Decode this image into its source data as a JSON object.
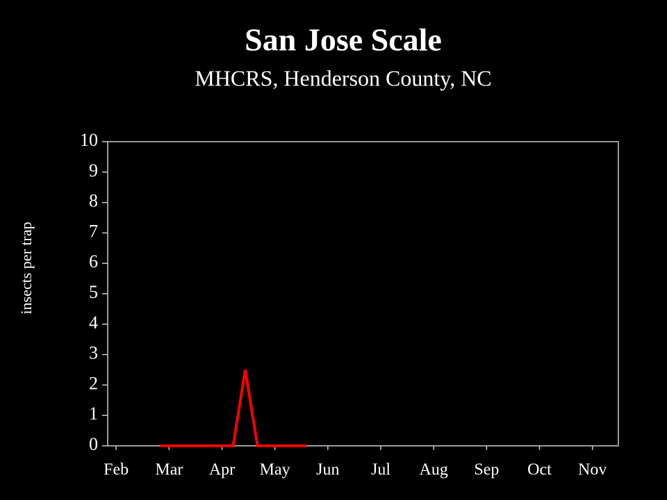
{
  "chart_data": {
    "type": "line",
    "title": "San Jose Scale",
    "subtitle": "MHCRS, Henderson County, NC",
    "y_label": "insects per trap",
    "x": [
      2.83,
      3.06,
      3.29,
      3.52,
      3.75,
      3.98,
      4.21,
      4.44,
      4.67,
      4.9,
      5.13,
      5.36,
      5.59
    ],
    "series": [
      {
        "color": "#ff0000",
        "values": [
          0,
          0,
          0,
          0,
          0,
          0,
          0,
          2.5,
          0,
          0,
          0,
          0,
          0
        ]
      }
    ],
    "xlim": [
      1.84,
      11.49
    ],
    "xticks": [
      {
        "value": 2,
        "label": "Feb"
      },
      {
        "value": 3,
        "label": "Mar"
      },
      {
        "value": 4,
        "label": "Apr"
      },
      {
        "value": 5,
        "label": "May"
      },
      {
        "value": 6,
        "label": "Jun"
      },
      {
        "value": 7,
        "label": "Jul"
      },
      {
        "value": 8,
        "label": "Aug"
      },
      {
        "value": 9,
        "label": "Sep"
      },
      {
        "value": 10,
        "label": "Oct"
      },
      {
        "value": 11,
        "label": "Nov"
      }
    ],
    "ylim": [
      0,
      10
    ],
    "yticks": [
      0,
      1,
      2,
      3,
      4,
      5,
      6,
      7,
      8,
      9,
      10
    ]
  }
}
